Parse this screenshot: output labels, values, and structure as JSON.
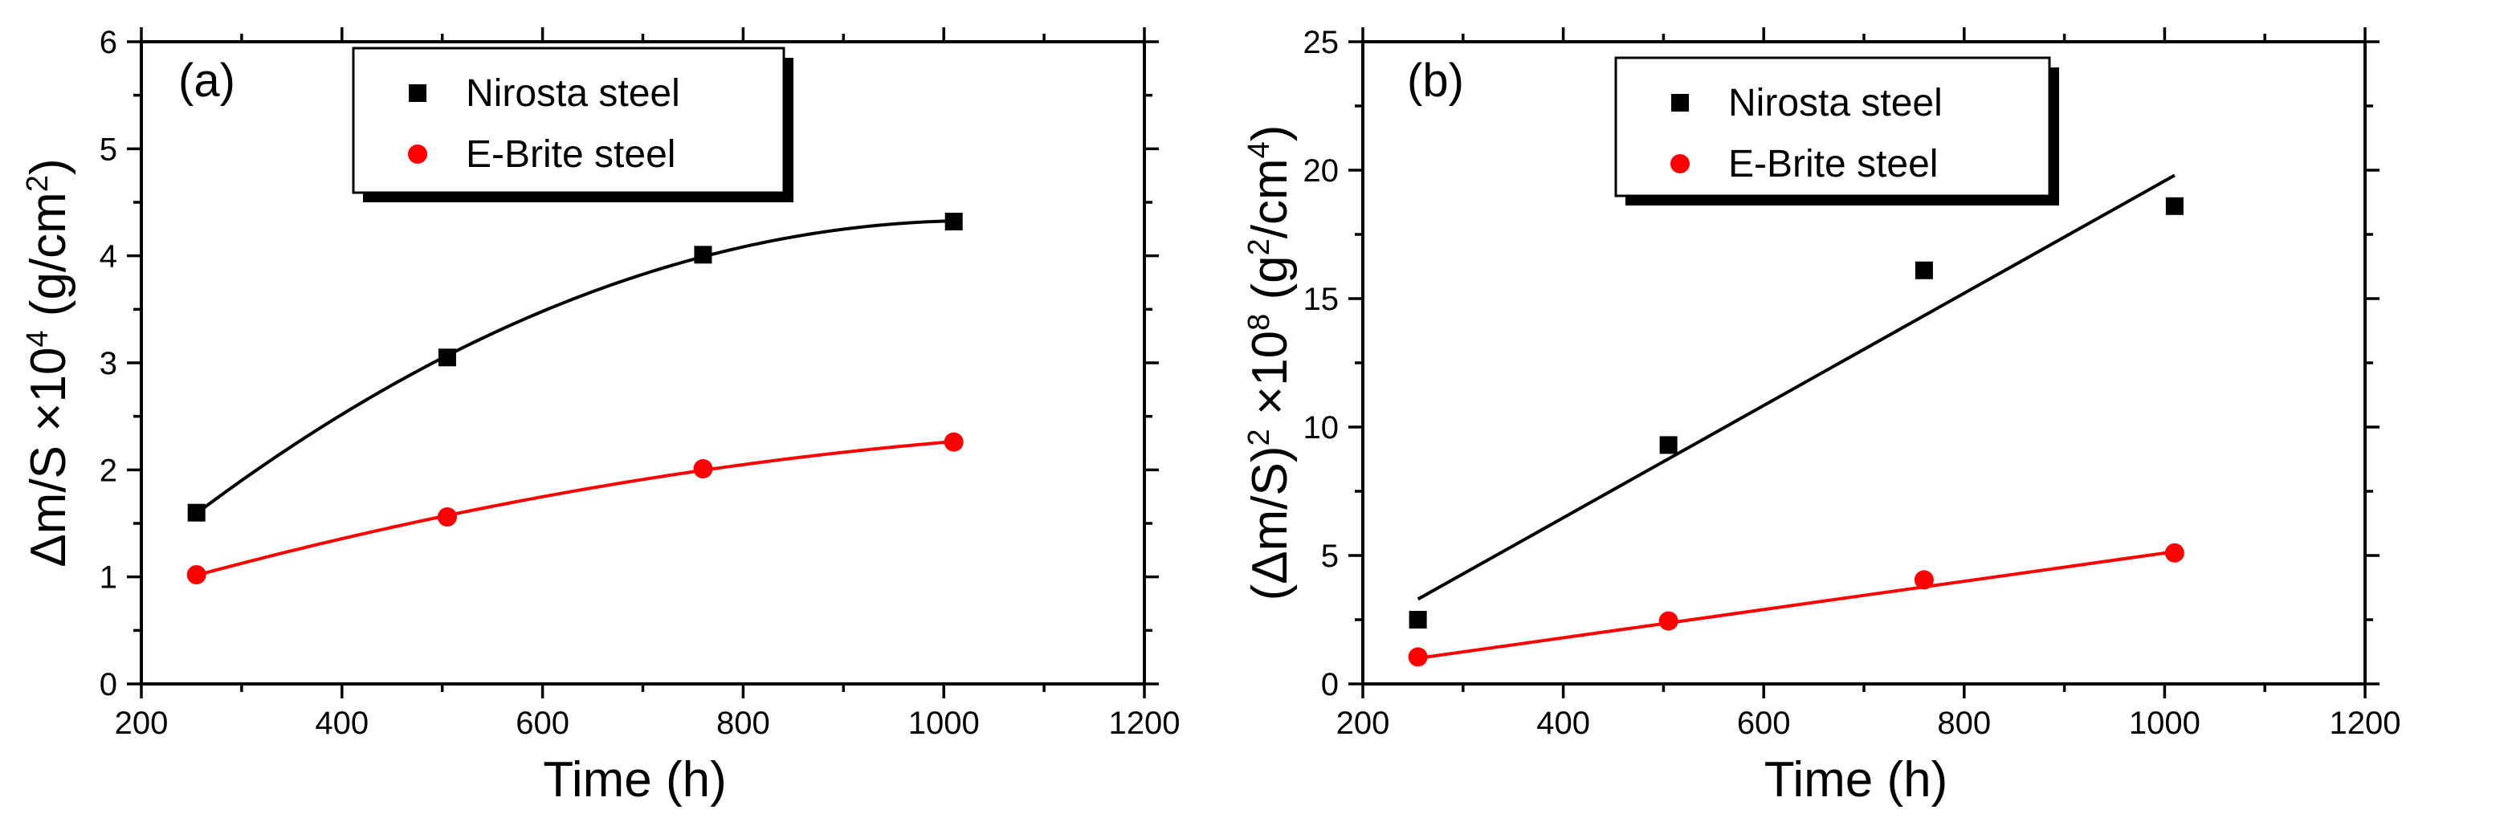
{
  "chart_data": [
    {
      "type": "scatter",
      "panel_label": "(a)",
      "xlabel": "Time (h)",
      "ylabel": {
        "pre": "Δm/S ×10",
        "exp": "4",
        "mid": " (g/cm",
        "exp2": "2",
        "post": ")"
      },
      "xlim": [
        200,
        1200
      ],
      "ylim": [
        0,
        6
      ],
      "xticks": [
        200,
        400,
        600,
        800,
        1000,
        1200
      ],
      "yticks": [
        0,
        1,
        2,
        3,
        4,
        5,
        6
      ],
      "fit": "power",
      "series": [
        {
          "name": "Nirosta steel",
          "marker": "square",
          "color": "#000000",
          "x": [
            255,
            505,
            760,
            1010
          ],
          "y": [
            1.6,
            3.05,
            4.01,
            4.32
          ]
        },
        {
          "name": "E-Brite steel",
          "marker": "circle",
          "color": "#ff0000",
          "x": [
            255,
            505,
            760,
            1010
          ],
          "y": [
            1.02,
            1.56,
            2.01,
            2.26
          ]
        }
      ]
    },
    {
      "type": "scatter",
      "panel_label": "(b)",
      "xlabel": "Time (h)",
      "ylabel": {
        "pre": "(Δm/S)",
        "exp": "2",
        "mid": " ×10",
        "exp2": "8",
        "mid2": " (g",
        "exp3": "2",
        "mid3": "/cm",
        "exp4": "4",
        "post": ")"
      },
      "xlim": [
        200,
        1200
      ],
      "ylim": [
        0,
        25
      ],
      "xticks": [
        200,
        400,
        600,
        800,
        1000,
        1200
      ],
      "yticks": [
        0,
        5,
        10,
        15,
        20,
        25
      ],
      "fit": "linear",
      "series": [
        {
          "name": "Nirosta steel",
          "marker": "square",
          "color": "#000000",
          "x": [
            255,
            505,
            760,
            1010
          ],
          "y": [
            2.5,
            9.3,
            16.1,
            18.6
          ],
          "fit_line": {
            "x": [
              255,
              1010
            ],
            "y": [
              3.3,
              19.8
            ]
          }
        },
        {
          "name": "E-Brite steel",
          "marker": "circle",
          "color": "#ff0000",
          "x": [
            255,
            505,
            760,
            1010
          ],
          "y": [
            1.05,
            2.45,
            4.05,
            5.1
          ],
          "fit_line": {
            "x": [
              255,
              1010
            ],
            "y": [
              1.0,
              5.15
            ]
          }
        }
      ]
    }
  ]
}
